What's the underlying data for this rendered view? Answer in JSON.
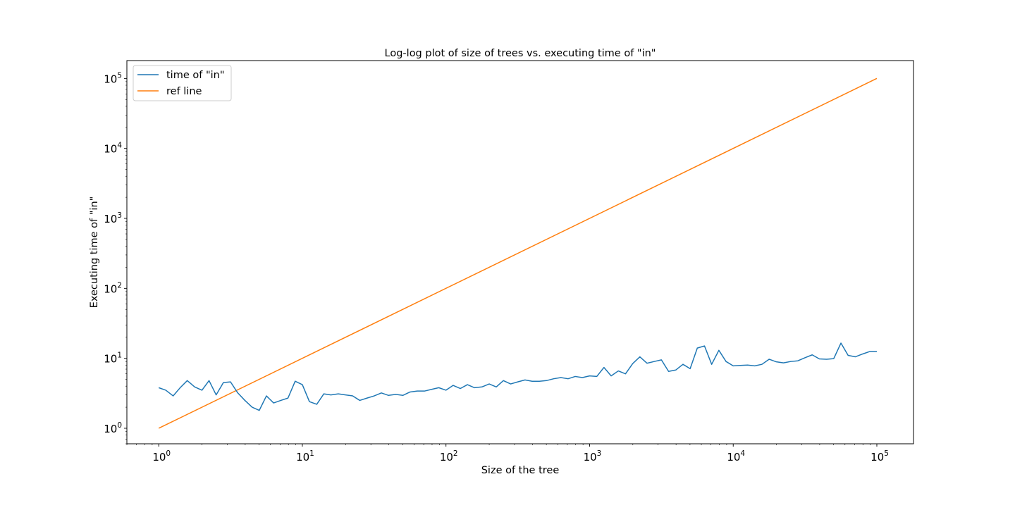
{
  "chart_data": {
    "type": "line",
    "title": "Log-log plot of size of trees vs. executing time of \"in\"",
    "xlabel": "Size of the tree",
    "ylabel": "Executing time of \"in\"",
    "xscale": "log",
    "yscale": "log",
    "xlim": [
      0.6,
      180000
    ],
    "ylim": [
      0.6,
      180000
    ],
    "grid": false,
    "legend_position": "upper-left",
    "x_tick_labels": [
      {
        "base": "10",
        "exp": "0"
      },
      {
        "base": "10",
        "exp": "1"
      },
      {
        "base": "10",
        "exp": "2"
      },
      {
        "base": "10",
        "exp": "3"
      },
      {
        "base": "10",
        "exp": "4"
      },
      {
        "base": "10",
        "exp": "5"
      }
    ],
    "y_tick_labels": [
      {
        "base": "10",
        "exp": "0"
      },
      {
        "base": "10",
        "exp": "1"
      },
      {
        "base": "10",
        "exp": "2"
      },
      {
        "base": "10",
        "exp": "3"
      },
      {
        "base": "10",
        "exp": "4"
      },
      {
        "base": "10",
        "exp": "5"
      }
    ],
    "series": [
      {
        "name": "time of \"in\"",
        "color": "#1f77b4",
        "x": [
          1,
          1.12,
          1.26,
          1.41,
          1.58,
          1.78,
          2,
          2.24,
          2.51,
          2.82,
          3.16,
          3.55,
          3.98,
          4.47,
          5.01,
          5.62,
          6.31,
          7.08,
          7.94,
          8.91,
          10,
          11.2,
          12.6,
          14.1,
          15.8,
          17.8,
          20,
          22.4,
          25.1,
          28.2,
          31.6,
          35.5,
          39.8,
          44.7,
          50.1,
          56.2,
          63.1,
          70.8,
          79.4,
          89.1,
          100,
          112,
          126,
          141,
          158,
          178,
          200,
          224,
          251,
          282,
          316,
          355,
          398,
          447,
          501,
          562,
          631,
          708,
          794,
          891,
          1000,
          1122,
          1259,
          1413,
          1585,
          1778,
          1995,
          2239,
          2512,
          2818,
          3162,
          3548,
          3981,
          4467,
          5012,
          5623,
          6310,
          7079,
          7943,
          8913,
          10000,
          11220,
          12589,
          14125,
          15849,
          17783,
          19953,
          22387,
          25119,
          28184,
          31623,
          35481,
          39811,
          44668,
          50119,
          56234,
          63096,
          70795,
          79433,
          89125,
          100000
        ],
        "y": [
          3.8,
          3.5,
          2.9,
          3.8,
          4.8,
          3.9,
          3.5,
          4.8,
          3.0,
          4.5,
          4.6,
          3.2,
          2.5,
          2.0,
          1.8,
          2.9,
          2.3,
          2.5,
          2.7,
          4.7,
          4.2,
          2.4,
          2.2,
          3.1,
          3.0,
          3.1,
          3.0,
          2.9,
          2.5,
          2.7,
          2.9,
          3.2,
          2.95,
          3.05,
          2.95,
          3.3,
          3.4,
          3.4,
          3.6,
          3.8,
          3.5,
          4.1,
          3.7,
          4.2,
          3.8,
          3.9,
          4.3,
          3.9,
          4.8,
          4.3,
          4.6,
          4.9,
          4.7,
          4.7,
          4.8,
          5.1,
          5.3,
          5.1,
          5.5,
          5.3,
          5.6,
          5.5,
          7.4,
          5.6,
          6.6,
          6.0,
          8.4,
          10.5,
          8.5,
          9.0,
          9.5,
          6.5,
          6.8,
          8.2,
          7.1,
          14.0,
          15.0,
          8.2,
          13.0,
          9.0,
          7.8,
          7.9,
          8.0,
          7.8,
          8.2,
          9.7,
          8.9,
          8.6,
          9.0,
          9.2,
          10.2,
          11.2,
          9.8,
          9.7,
          9.9,
          16.5,
          11.0,
          10.5,
          11.5,
          12.5,
          12.5
        ]
      },
      {
        "name": "ref line",
        "color": "#ff7f0e",
        "x": [
          1,
          100000
        ],
        "y": [
          1,
          100000
        ]
      }
    ]
  }
}
